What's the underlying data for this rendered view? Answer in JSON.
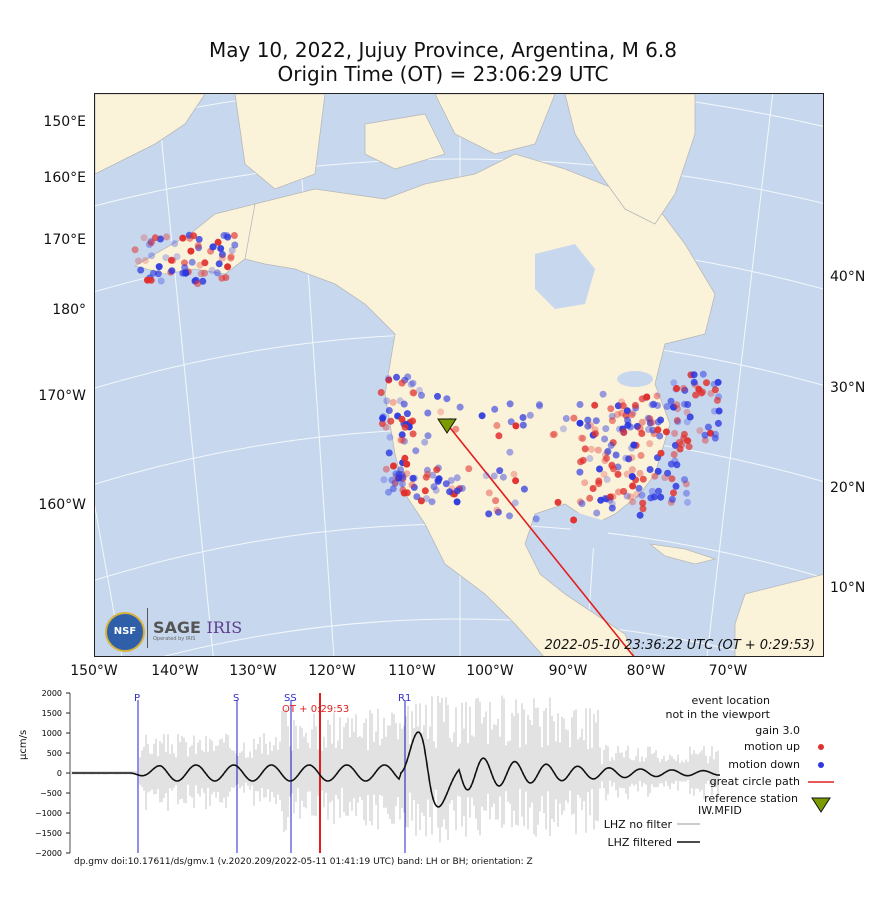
{
  "header": {
    "title": "May 10, 2022, Jujuy Province, Argentina, M 6.8",
    "subtitle": "Origin Time (OT) = 23:06:29 UTC"
  },
  "map": {
    "left_labels": [
      "150°E",
      "160°E",
      "170°E",
      "180°",
      "170°W",
      "160°W"
    ],
    "right_labels": [
      "40°N",
      "30°N",
      "20°N",
      "10°N"
    ],
    "bottom_labels": [
      "150°W",
      "140°W",
      "130°W",
      "120°W",
      "110°W",
      "100°W",
      "90°W",
      "80°W",
      "70°W"
    ],
    "timestamp": "2022-05-10 23:36:22 UTC (OT + 0:29:53)",
    "logo_text": "SAGE",
    "logo_text2": "IRIS",
    "logo_sub": "Operated by IRIS",
    "logo_badge": "NSF",
    "colors": {
      "ocean": "#c7d8ee",
      "land": "#fbf3d9",
      "up": "#e0302e",
      "down": "#2c38e0",
      "path": "#e02020",
      "station": "#7a9a00"
    }
  },
  "seismogram": {
    "yticks": [
      "2000",
      "1500",
      "1000",
      "500",
      "0",
      "−500",
      "−1000",
      "−1500",
      "−2000"
    ],
    "ylabel": "µcm/s",
    "phases": [
      "P",
      "S",
      "SS",
      "R1"
    ],
    "ot_marker": "OT + 0:29:53",
    "legend": {
      "event_note_1": "event location",
      "event_note_2": "not in the viewport",
      "gain": "gain  3.0",
      "motion_up": "motion up",
      "motion_down": "motion down",
      "great_circle": "great circle path",
      "ref_station_1": "reference station",
      "ref_station_2": "IW.MFID",
      "no_filter": "LHZ no filter",
      "filtered": "LHZ filtered"
    },
    "footer": "dp.gmv doi:10.17611/ds/gmv.1 (v.2020.209/2022-05-11 01:41:19 UTC) band: LH or BH; orientation: Z"
  }
}
